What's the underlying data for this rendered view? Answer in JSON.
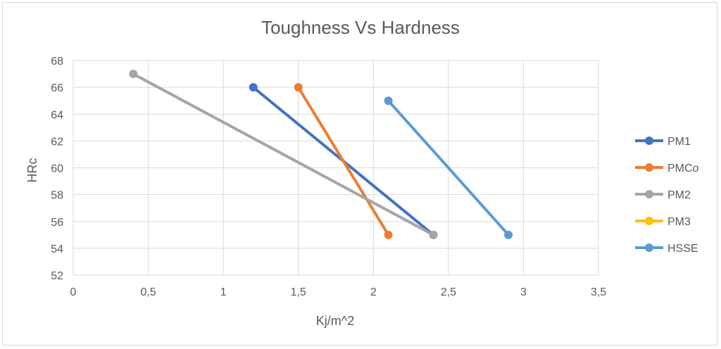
{
  "chart_data": {
    "type": "line",
    "title": "Toughness Vs Hardness",
    "xlabel": "Kj/m^2",
    "ylabel": "HRc",
    "xlim": [
      0,
      3.5
    ],
    "ylim": [
      52,
      68
    ],
    "x_ticks": [
      0,
      0.5,
      1,
      1.5,
      2,
      2.5,
      3,
      3.5
    ],
    "x_tick_labels": [
      "0",
      "0,5",
      "1",
      "1,5",
      "2",
      "2,5",
      "3",
      "3,5"
    ],
    "y_ticks": [
      52,
      54,
      56,
      58,
      60,
      62,
      64,
      66,
      68
    ],
    "y_tick_labels": [
      "52",
      "54",
      "56",
      "58",
      "60",
      "62",
      "64",
      "66",
      "68"
    ],
    "grid": true,
    "legend_position": "right",
    "series": [
      {
        "name": "PM1",
        "color": "#4472c4",
        "points": [
          {
            "x": 1.2,
            "y": 66
          },
          {
            "x": 2.4,
            "y": 55
          }
        ]
      },
      {
        "name": "PMCo",
        "color": "#ed7d31",
        "points": [
          {
            "x": 1.5,
            "y": 66
          },
          {
            "x": 2.1,
            "y": 55
          }
        ]
      },
      {
        "name": "PM2",
        "color": "#a5a5a5",
        "points": [
          {
            "x": 0.4,
            "y": 67
          },
          {
            "x": 2.4,
            "y": 55
          }
        ]
      },
      {
        "name": "PM3",
        "color": "#ffc000",
        "points": []
      },
      {
        "name": "HSSE",
        "color": "#5b9bd5",
        "points": [
          {
            "x": 2.1,
            "y": 65
          },
          {
            "x": 2.9,
            "y": 55
          }
        ]
      }
    ]
  }
}
